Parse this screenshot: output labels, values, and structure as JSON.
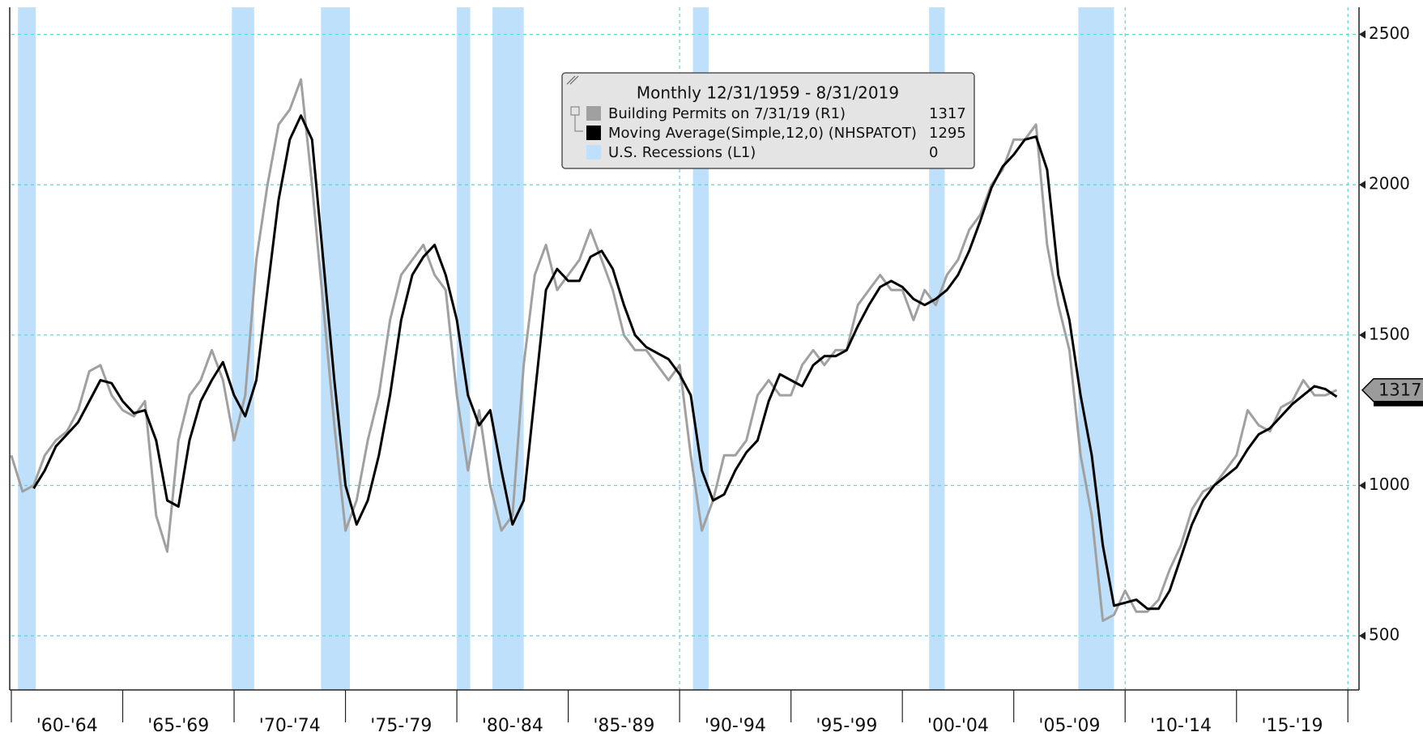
{
  "chart_data": {
    "type": "line",
    "legend_title": "Monthly 12/31/1959 - 8/31/2019",
    "x": [
      1960,
      1960.5,
      1961,
      1961.5,
      1962,
      1962.5,
      1963,
      1963.5,
      1964,
      1964.5,
      1965,
      1965.5,
      1966,
      1966.5,
      1967,
      1967.5,
      1968,
      1968.5,
      1969,
      1969.5,
      1970,
      1970.5,
      1971,
      1971.5,
      1972,
      1972.5,
      1973,
      1973.5,
      1974,
      1974.5,
      1975,
      1975.5,
      1976,
      1976.5,
      1977,
      1977.5,
      1978,
      1978.5,
      1979,
      1979.5,
      1980,
      1980.5,
      1981,
      1981.5,
      1982,
      1982.5,
      1983,
      1983.5,
      1984,
      1984.5,
      1985,
      1985.5,
      1986,
      1986.5,
      1987,
      1987.5,
      1988,
      1988.5,
      1989,
      1989.5,
      1990,
      1990.5,
      1991,
      1991.5,
      1992,
      1992.5,
      1993,
      1993.5,
      1994,
      1994.5,
      1995,
      1995.5,
      1996,
      1996.5,
      1997,
      1997.5,
      1998,
      1998.5,
      1999,
      1999.5,
      2000,
      2000.5,
      2001,
      2001.5,
      2002,
      2002.5,
      2003,
      2003.5,
      2004,
      2004.5,
      2005,
      2005.5,
      2006,
      2006.5,
      2007,
      2007.5,
      2008,
      2008.5,
      2009,
      2009.5,
      2010,
      2010.5,
      2011,
      2011.5,
      2012,
      2012.5,
      2013,
      2013.5,
      2014,
      2014.5,
      2015,
      2015.5,
      2016,
      2016.5,
      2017,
      2017.5,
      2018,
      2018.5,
      2019,
      2019.5
    ],
    "series": [
      {
        "name": "Building Permits on 7/31/19 (R1)",
        "legend_value": 1317,
        "color": "#a0a0a0",
        "values": [
          1100,
          980,
          1000,
          1100,
          1150,
          1180,
          1250,
          1380,
          1400,
          1300,
          1250,
          1230,
          1280,
          900,
          780,
          1150,
          1300,
          1350,
          1450,
          1350,
          1150,
          1300,
          1750,
          2000,
          2200,
          2250,
          2350,
          2000,
          1600,
          1200,
          850,
          950,
          1150,
          1300,
          1550,
          1700,
          1750,
          1800,
          1700,
          1650,
          1300,
          1050,
          1250,
          1000,
          850,
          900,
          1400,
          1700,
          1800,
          1650,
          1700,
          1750,
          1850,
          1750,
          1650,
          1500,
          1450,
          1450,
          1400,
          1350,
          1400,
          1100,
          850,
          950,
          1100,
          1100,
          1150,
          1300,
          1350,
          1300,
          1300,
          1400,
          1450,
          1400,
          1450,
          1450,
          1600,
          1650,
          1700,
          1650,
          1650,
          1550,
          1650,
          1600,
          1700,
          1750,
          1850,
          1900,
          2000,
          2050,
          2150,
          2150,
          2200,
          1800,
          1600,
          1450,
          1100,
          900,
          550,
          570,
          650,
          580,
          580,
          620,
          720,
          800,
          920,
          980,
          1000,
          1050,
          1100,
          1250,
          1200,
          1180,
          1260,
          1280,
          1350,
          1300,
          1300,
          1317
        ]
      },
      {
        "name": "Moving Average(Simple,12,0) (NHSPATOT)",
        "legend_value": 1295,
        "color": "#000000",
        "values": [
          null,
          null,
          990,
          1050,
          1130,
          1170,
          1210,
          1280,
          1350,
          1340,
          1280,
          1240,
          1250,
          1150,
          950,
          930,
          1150,
          1280,
          1350,
          1410,
          1300,
          1230,
          1350,
          1650,
          1950,
          2150,
          2230,
          2150,
          1750,
          1350,
          1000,
          870,
          950,
          1100,
          1300,
          1550,
          1700,
          1760,
          1800,
          1700,
          1550,
          1300,
          1200,
          1250,
          1050,
          870,
          950,
          1300,
          1650,
          1720,
          1680,
          1680,
          1760,
          1780,
          1720,
          1600,
          1500,
          1460,
          1440,
          1420,
          1370,
          1300,
          1050,
          950,
          970,
          1050,
          1110,
          1150,
          1280,
          1370,
          1350,
          1330,
          1400,
          1430,
          1430,
          1450,
          1530,
          1600,
          1660,
          1680,
          1660,
          1620,
          1600,
          1620,
          1650,
          1700,
          1780,
          1880,
          1990,
          2060,
          2100,
          2150,
          2160,
          2050,
          1700,
          1550,
          1300,
          1100,
          800,
          600,
          610,
          620,
          590,
          590,
          650,
          760,
          870,
          950,
          1000,
          1030,
          1060,
          1120,
          1170,
          1190,
          1230,
          1270,
          1300,
          1330,
          1320,
          1295
        ]
      }
    ],
    "recession_name": "U.S. Recessions (L1)",
    "recession_value": 0,
    "recession_color": "#bfe0fb",
    "recessions": [
      [
        1960.3,
        1961.1
      ],
      [
        1969.9,
        1970.9
      ],
      [
        1973.9,
        1975.2
      ],
      [
        1980.0,
        1980.6
      ],
      [
        1981.6,
        1983.0
      ],
      [
        1990.6,
        1991.3
      ],
      [
        2001.2,
        2001.9
      ],
      [
        2007.9,
        2009.5
      ]
    ],
    "xlim": [
      1960,
      2020.5
    ],
    "xticks": [
      1960,
      1965,
      1970,
      1975,
      1980,
      1985,
      1990,
      1995,
      2000,
      2005,
      2010,
      2015,
      2020
    ],
    "xgrid": [
      1990,
      2010,
      2020
    ],
    "x_period_labels": [
      "'60-'64",
      "'65-'69",
      "'70-'74",
      "'75-'79",
      "'80-'84",
      "'85-'89",
      "'90-'94",
      "'95-'99",
      "'00-'04",
      "'05-'09",
      "'10-'14",
      "'15-'19"
    ],
    "ylim": [
      320,
      2590
    ],
    "yticks": [
      500,
      1000,
      1500,
      2000,
      2500
    ],
    "grid": true
  }
}
